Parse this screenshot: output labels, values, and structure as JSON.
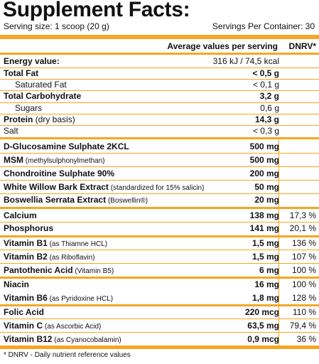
{
  "title": "Supplement Facts:",
  "serving_size": "Serving size: 1 scoop (20 g)",
  "servings_per_container": "Servings Per Container: 30",
  "header": {
    "amount": "Average values per serving",
    "dnrv": "DNRV*"
  },
  "rows": [
    {
      "name": "Energy value:",
      "amount": "316 kJ / 74,5 kcal",
      "pct": ""
    },
    {
      "name": "Total Fat",
      "amount": "< 0,5 g",
      "pct": ""
    },
    {
      "name": "Saturated Fat",
      "amount": "< 0,1 g",
      "pct": ""
    },
    {
      "name": "Total Carbohydrate",
      "amount": "3,2 g",
      "pct": ""
    },
    {
      "name": "Sugars",
      "amount": "0,6 g",
      "pct": ""
    },
    {
      "name": "Protein",
      "note": "(dry basis)",
      "amount": "14,3 g",
      "pct": ""
    },
    {
      "name": "Salt",
      "amount": "< 0,3 g",
      "pct": ""
    },
    {
      "name": "D-Glucosamine Sulphate 2KCL",
      "amount": "500 mg",
      "pct": ""
    },
    {
      "name": "MSM",
      "note": "(methylsulphonylmethan)",
      "amount": "500 mg",
      "pct": ""
    },
    {
      "name": "Chondroitine Sulphate 90%",
      "amount": "200 mg",
      "pct": ""
    },
    {
      "name": "White Willow Bark Extract",
      "note": "(standardized for 15% salicin)",
      "amount": "50 mg",
      "pct": ""
    },
    {
      "name": "Boswellia Serrata Extract",
      "note": "(Boswellin®)",
      "amount": "20 mg",
      "pct": ""
    },
    {
      "name": "Calcium",
      "amount": "138 mg",
      "pct": "17,3 %"
    },
    {
      "name": "Phosphorus",
      "amount": "141 mg",
      "pct": "20,1 %"
    },
    {
      "name": "Vitamin B1",
      "note": "(as Thiamne HCL)",
      "amount": "1,5 mg",
      "pct": "136 %"
    },
    {
      "name": "Vitamin B2",
      "note": "(as Riboflavin)",
      "amount": "1,5 mg",
      "pct": "107 %"
    },
    {
      "name": "Pantothenic Acid",
      "note": "(Vitamin B5)",
      "amount": "6 mg",
      "pct": "100 %"
    },
    {
      "name": "Niacin",
      "amount": "16 mg",
      "pct": "100 %"
    },
    {
      "name": "Vitamin B6",
      "note": "(as Pyridoxine HCL)",
      "amount": "1,8 mg",
      "pct": "128 %"
    },
    {
      "name": "Folic Acid",
      "amount": "220 mcg",
      "pct": "110 %"
    },
    {
      "name": "Vitamin C",
      "note": "(as Ascorbic Acid)",
      "amount": "63,5 mg",
      "pct": "79,4 %"
    },
    {
      "name": "Vitamin B12",
      "note": "(as Cyanocobalamin)",
      "amount": "0,9 mcg",
      "pct": "36 %"
    }
  ],
  "footnote": "* DNRV - Daily nutrient reference values",
  "accent_color": "#f5a623"
}
